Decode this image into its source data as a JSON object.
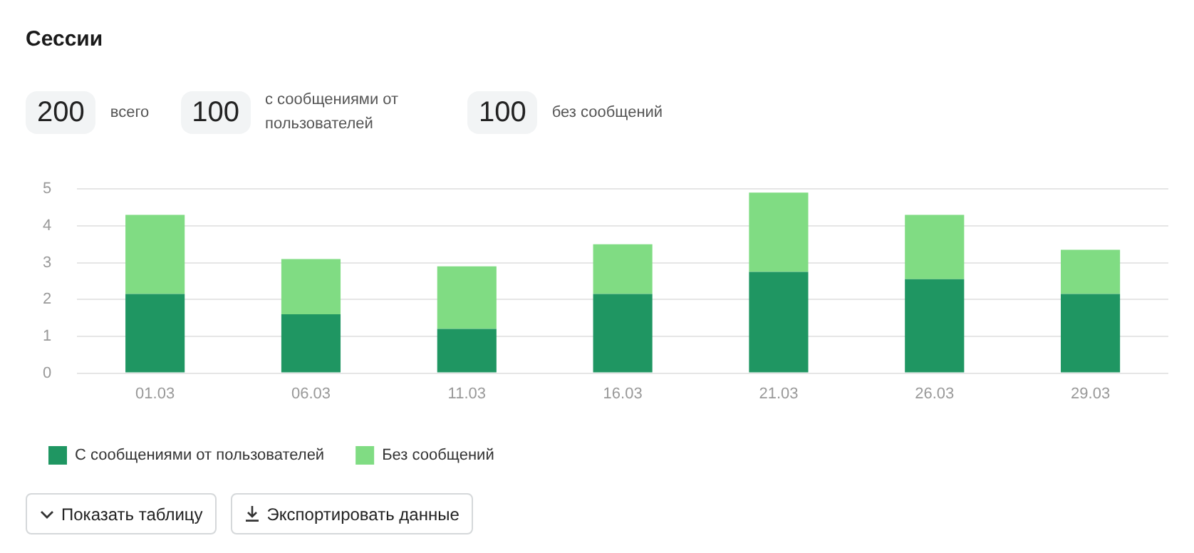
{
  "chart_data": {
    "type": "bar",
    "title": "Сессии",
    "categories": [
      "01.03",
      "06.03",
      "11.03",
      "16.03",
      "21.03",
      "26.03",
      "29.03"
    ],
    "series": [
      {
        "name": "С сообщениями от пользователей",
        "color": "#1f9662",
        "values": [
          2.15,
          1.6,
          1.2,
          2.15,
          2.75,
          2.55,
          2.15
        ]
      },
      {
        "name": "Без сообщений",
        "color": "#80dc83",
        "values": [
          2.15,
          1.5,
          1.7,
          1.35,
          2.15,
          1.75,
          1.2
        ]
      }
    ],
    "stacked": true,
    "ylim": [
      0,
      5
    ],
    "yticks": [
      0,
      1,
      2,
      3,
      4,
      5
    ],
    "grid": "y",
    "legend": "bottom left",
    "annotations": [
      "200",
      "всего",
      "100",
      "с сообщениями от пользователей",
      "100",
      "без сообщений",
      "Показать таблицу",
      "Экспортировать данные"
    ]
  }
}
